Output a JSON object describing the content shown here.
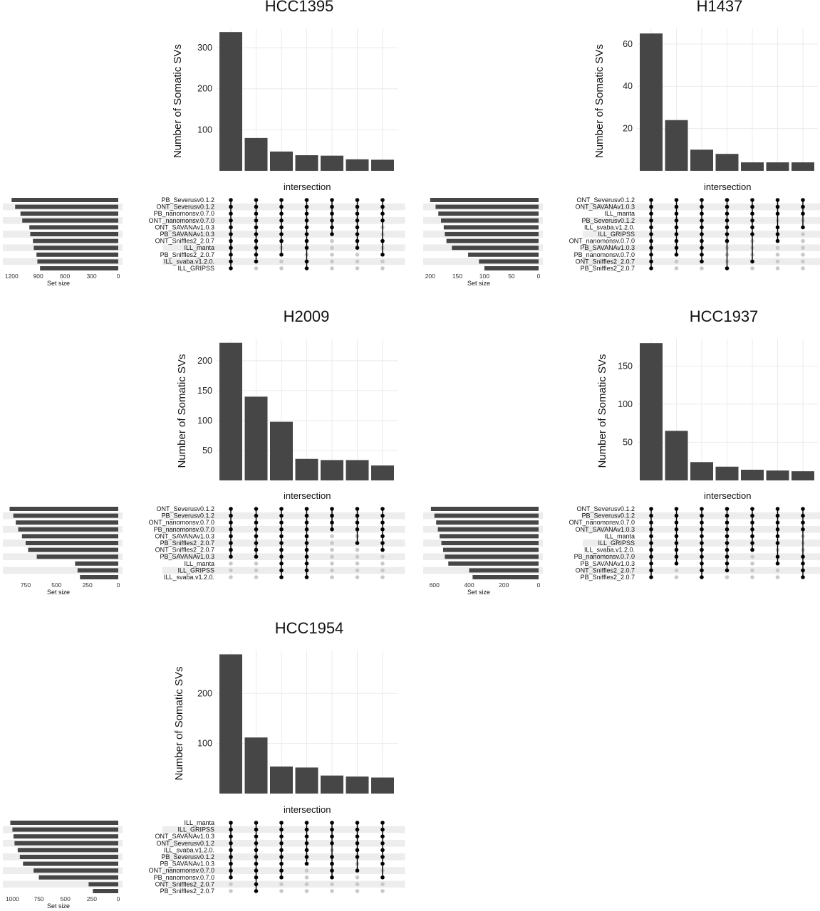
{
  "colors": {
    "bar": "#464646",
    "dot_on": "#000000",
    "dot_off": "#c8c8c8",
    "stripe": "#ededed",
    "grid": "#ebebeb"
  },
  "chart_data": [
    {
      "type": "bar",
      "title": "HCC1395",
      "ylabel": "Number of Somatic SVs",
      "xlabel": "intersection",
      "setsize_label": "Set size",
      "yticks": [
        100,
        200,
        300
      ],
      "ylim": [
        0,
        340
      ],
      "values": [
        338,
        80,
        47,
        38,
        37,
        28,
        27
      ],
      "sets": [
        "PB_Severusv0.1.2",
        "ONT_Severusv0.1.2",
        "PB_nanomonsv.0.7.0",
        "ONT_nanomonsv.0.7.0",
        "ONT_SAVANAv1.0.3",
        "PB_SAVANAv1.0.3",
        "ONT_Sniffles2_2.0.7",
        "ILL_manta",
        "PB_Sniffles2_2.0.7",
        "ILL_svaba.v1.2.0.",
        "ILL_GRIPSS"
      ],
      "set_sizes": [
        1200,
        1160,
        1100,
        1080,
        1000,
        990,
        960,
        950,
        920,
        910,
        880
      ],
      "setsize_ticks": [
        1200,
        900,
        600,
        300,
        0
      ],
      "setsize_max": 1250,
      "matrix": [
        [
          1,
          1,
          1,
          1,
          1,
          1,
          1,
          1,
          1,
          1,
          1
        ],
        [
          1,
          1,
          1,
          1,
          1,
          1,
          1,
          1,
          1,
          1,
          0
        ],
        [
          1,
          1,
          1,
          1,
          1,
          1,
          1,
          0,
          1,
          0,
          0
        ],
        [
          1,
          1,
          1,
          1,
          1,
          1,
          1,
          1,
          0,
          1,
          1
        ],
        [
          1,
          1,
          1,
          1,
          1,
          1,
          0,
          0,
          0,
          0,
          0
        ],
        [
          1,
          1,
          1,
          1,
          1,
          1,
          1,
          1,
          0,
          0,
          0
        ],
        [
          1,
          1,
          1,
          1,
          0,
          0,
          1,
          0,
          1,
          0,
          0
        ]
      ]
    },
    {
      "type": "bar",
      "title": "H1437",
      "ylabel": "Number of Somatic SVs",
      "xlabel": "intersection",
      "setsize_label": "Set size",
      "yticks": [
        20,
        40,
        60
      ],
      "ylim": [
        0,
        66
      ],
      "values": [
        65,
        24,
        10,
        8,
        4,
        4,
        4
      ],
      "sets": [
        "ONT_Severusv0.1.2",
        "ONT_SAVANAv1.0.3",
        "ILL_manta",
        "PB_Severusv0.1.2",
        "ILL_svaba.v1.2.0.",
        "ILL_GRIPSS",
        "ONT_nanomonsv.0.7.0",
        "PB_SAVANAv1.0.3",
        "PB_nanomonsv.0.7.0",
        "ONT_Sniffles2_2.0.7",
        "PB_Sniffles2_2.0.7"
      ],
      "set_sizes": [
        200,
        190,
        185,
        180,
        175,
        173,
        170,
        160,
        130,
        110,
        100
      ],
      "setsize_ticks": [
        200,
        150,
        100,
        50,
        0
      ],
      "setsize_max": 205,
      "matrix": [
        [
          1,
          1,
          1,
          1,
          1,
          1,
          1,
          1,
          1,
          1,
          1
        ],
        [
          1,
          1,
          1,
          1,
          1,
          1,
          1,
          1,
          1,
          0,
          0
        ],
        [
          1,
          1,
          1,
          1,
          1,
          1,
          1,
          1,
          1,
          1,
          0
        ],
        [
          1,
          1,
          1,
          1,
          1,
          1,
          1,
          0,
          0,
          0,
          1
        ],
        [
          1,
          1,
          1,
          1,
          1,
          1,
          0,
          0,
          0,
          1,
          0
        ],
        [
          1,
          1,
          1,
          0,
          1,
          1,
          1,
          0,
          0,
          0,
          0
        ],
        [
          1,
          1,
          1,
          0,
          1,
          0,
          0,
          0,
          0,
          0,
          0
        ]
      ]
    },
    {
      "type": "bar",
      "title": "H2009",
      "ylabel": "Number of Somatic SVs",
      "xlabel": "intersection",
      "setsize_label": "Set size",
      "yticks": [
        50,
        100,
        150,
        200
      ],
      "ylim": [
        0,
        232
      ],
      "values": [
        230,
        140,
        98,
        36,
        34,
        34,
        25
      ],
      "sets": [
        "ONT_Severusv0.1.2",
        "PB_Severusv0.1.2",
        "ONT_nanomonsv.0.7.0",
        "PB_nanomonsv.0.7.0",
        "ONT_SAVANAv1.0.3",
        "PB_Sniffles2_2.0.7",
        "ONT_Sniffles2_2.0.7",
        "PB_SAVANAv1.0.3",
        "ILL_manta",
        "ILL_GRIPSS",
        "ILL_svaba.v1.2.0."
      ],
      "set_sizes": [
        880,
        850,
        830,
        810,
        780,
        750,
        730,
        660,
        350,
        330,
        310
      ],
      "setsize_ticks": [
        750,
        500,
        250,
        0
      ],
      "setsize_max": 900,
      "matrix": [
        [
          1,
          1,
          1,
          1,
          1,
          1,
          1,
          1,
          0,
          0,
          0
        ],
        [
          1,
          1,
          1,
          1,
          1,
          1,
          1,
          1,
          0,
          0,
          0
        ],
        [
          1,
          1,
          1,
          1,
          1,
          1,
          1,
          1,
          1,
          1,
          1
        ],
        [
          1,
          1,
          1,
          1,
          1,
          1,
          1,
          1,
          1,
          1,
          1
        ],
        [
          1,
          1,
          1,
          1,
          0,
          0,
          0,
          0,
          0,
          0,
          0
        ],
        [
          1,
          1,
          1,
          1,
          0,
          1,
          0,
          0,
          0,
          0,
          0
        ],
        [
          1,
          1,
          1,
          1,
          1,
          1,
          1,
          0,
          0,
          0,
          0
        ]
      ]
    },
    {
      "type": "bar",
      "title": "HCC1937",
      "ylabel": "Number of Somatic SVs",
      "xlabel": "intersection",
      "setsize_label": "Set size",
      "yticks": [
        50,
        100,
        150
      ],
      "ylim": [
        0,
        182
      ],
      "values": [
        180,
        65,
        24,
        18,
        14,
        13,
        12
      ],
      "sets": [
        "ONT_Severusv0.1.2",
        "PB_Severusv0.1.2",
        "ONT_nanomonsv.0.7.0",
        "ONT_SAVANAv1.0.3",
        "ILL_manta",
        "ILL_GRIPSS",
        "ILL_svaba.v1.2.0.",
        "PB_nanomonsv.0.7.0",
        "PB_SAVANAv1.0.3",
        "ONT_Sniffles2_2.0.7",
        "PB_Sniffles2_2.0.7"
      ],
      "set_sizes": [
        620,
        600,
        590,
        580,
        570,
        560,
        550,
        540,
        520,
        400,
        380
      ],
      "setsize_ticks": [
        600,
        400,
        200,
        0
      ],
      "setsize_max": 640,
      "matrix": [
        [
          1,
          1,
          1,
          1,
          1,
          1,
          1,
          1,
          1,
          1,
          1
        ],
        [
          1,
          1,
          1,
          1,
          1,
          1,
          1,
          1,
          1,
          0,
          0
        ],
        [
          1,
          1,
          1,
          1,
          1,
          1,
          1,
          1,
          1,
          1,
          1
        ],
        [
          1,
          1,
          1,
          1,
          1,
          1,
          1,
          1,
          1,
          1,
          0
        ],
        [
          1,
          1,
          1,
          1,
          1,
          1,
          1,
          0,
          0,
          0,
          0
        ],
        [
          1,
          1,
          1,
          1,
          1,
          1,
          0,
          1,
          1,
          0,
          0
        ],
        [
          1,
          1,
          1,
          1,
          0,
          0,
          0,
          1,
          1,
          1,
          1
        ]
      ]
    },
    {
      "type": "bar",
      "title": "HCC1954",
      "ylabel": "Number of Somatic SVs",
      "xlabel": "intersection",
      "setsize_label": "Set size",
      "yticks": [
        100,
        200
      ],
      "ylim": [
        0,
        280
      ],
      "values": [
        278,
        112,
        54,
        52,
        36,
        34,
        32
      ],
      "sets": [
        "ILL_manta",
        "ILL_GRIPSS",
        "ONT_SAVANAv1.0.3",
        "ONT_Severusv0.1.2",
        "ILL_svaba.v1.2.0.",
        "PB_Severusv0.1.2",
        "PB_SAVANAv1.0.3",
        "ONT_nanomonsv.0.7.0",
        "PB_nanomonsv.0.7.0",
        "ONT_Sniffles2_2.0.7",
        "PB_Sniffles2_2.0.7"
      ],
      "set_sizes": [
        1020,
        1000,
        990,
        980,
        950,
        930,
        900,
        800,
        750,
        280,
        240
      ],
      "setsize_ticks": [
        1000,
        750,
        500,
        250,
        0
      ],
      "setsize_max": 1050,
      "matrix": [
        [
          1,
          1,
          1,
          1,
          1,
          1,
          1,
          1,
          1,
          0,
          0
        ],
        [
          1,
          1,
          1,
          1,
          1,
          1,
          1,
          1,
          1,
          1,
          1
        ],
        [
          1,
          1,
          1,
          1,
          1,
          1,
          1,
          1,
          1,
          0,
          0
        ],
        [
          1,
          1,
          1,
          1,
          1,
          1,
          1,
          0,
          0,
          0,
          0
        ],
        [
          1,
          1,
          1,
          1,
          0,
          1,
          1,
          1,
          1,
          0,
          0
        ],
        [
          1,
          1,
          1,
          1,
          1,
          1,
          0,
          1,
          0,
          0,
          0
        ],
        [
          1,
          1,
          1,
          1,
          1,
          1,
          1,
          0,
          1,
          0,
          0
        ]
      ]
    }
  ]
}
